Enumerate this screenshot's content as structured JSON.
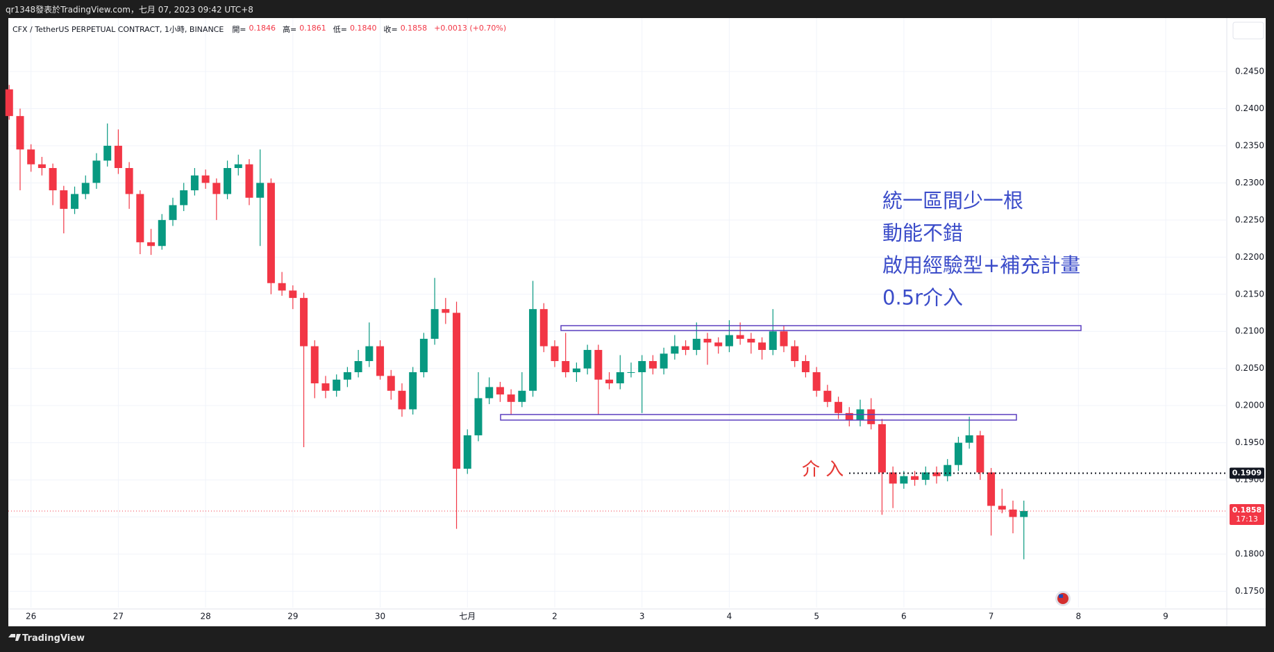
{
  "byline": "qr1348發表於TradingView.com，七月 07, 2023 09:42 UTC+8",
  "header": {
    "symbol": "CFX / TetherUS PERPETUAL CONTRACT, 1小時, BINANCE",
    "open_label": "開=",
    "open": "0.1846",
    "high_label": "高=",
    "high": "0.1861",
    "low_label": "低=",
    "low": "0.1840",
    "close_label": "收=",
    "close": "0.1858",
    "change": "+0.0013 (+0.70%)"
  },
  "footer": "TradingView",
  "chart_data": {
    "type": "candlestick",
    "up_color": "#089981",
    "down_color": "#f23645",
    "grid": true,
    "xlim": [
      25.74,
      39.7
    ],
    "xticks": [
      26,
      27,
      28,
      29,
      30,
      {
        "value": 31,
        "label": "七月"
      },
      {
        "value": 32,
        "label": "2"
      },
      {
        "value": 33,
        "label": "3"
      },
      {
        "value": 34,
        "label": "4"
      },
      {
        "value": 35,
        "label": "5"
      },
      {
        "value": 36,
        "label": "6"
      },
      {
        "value": 37,
        "label": "7"
      },
      {
        "value": 38,
        "label": "8"
      },
      {
        "value": 39,
        "label": "9"
      }
    ],
    "ylim": [
      0.1728,
      0.2522
    ],
    "yticks": [
      {
        "value": 0.175,
        "label": "0.1750"
      },
      {
        "value": 0.18,
        "label": "0.1800"
      },
      {
        "value": 0.185,
        "label": "0.1850"
      },
      {
        "value": 0.19,
        "label": "0.1900"
      },
      {
        "value": 0.195,
        "label": "0.1950"
      },
      {
        "value": 0.2,
        "label": "0.2000"
      },
      {
        "value": 0.205,
        "label": "0.2050"
      },
      {
        "value": 0.21,
        "label": "0.2100"
      },
      {
        "value": 0.215,
        "label": "0.2150"
      },
      {
        "value": 0.22,
        "label": "0.2200"
      },
      {
        "value": 0.225,
        "label": "0.2250"
      },
      {
        "value": 0.23,
        "label": "0.2300"
      },
      {
        "value": 0.235,
        "label": "0.2350"
      },
      {
        "value": 0.24,
        "label": "0.2400"
      },
      {
        "value": 0.245,
        "label": "0.2450"
      }
    ],
    "x": [
      25.75,
      25.875,
      26,
      26.125,
      26.25,
      26.375,
      26.5,
      26.625,
      26.75,
      26.875,
      27,
      27.125,
      27.25,
      27.375,
      27.5,
      27.625,
      27.75,
      27.875,
      28,
      28.125,
      28.25,
      28.375,
      28.5,
      28.625,
      28.75,
      28.875,
      29,
      29.125,
      29.25,
      29.375,
      29.5,
      29.625,
      29.75,
      29.875,
      30,
      30.125,
      30.25,
      30.375,
      30.5,
      30.625,
      30.75,
      30.875,
      31,
      31.125,
      31.25,
      31.375,
      31.5,
      31.625,
      31.75,
      31.875,
      32,
      32.125,
      32.25,
      32.375,
      32.5,
      32.625,
      32.75,
      32.875,
      33,
      33.125,
      33.25,
      33.375,
      33.5,
      33.625,
      33.75,
      33.875,
      34,
      34.125,
      34.25,
      34.375,
      34.5,
      34.625,
      34.75,
      34.875,
      35,
      35.125,
      35.25,
      35.375,
      35.5,
      35.625,
      35.75,
      35.875,
      36,
      36.125,
      36.25,
      36.375,
      36.5,
      36.625,
      36.75,
      36.875,
      37,
      37.125,
      37.25,
      37.375
    ],
    "ohlc": [
      [
        0.2426,
        0.2432,
        0.2385,
        0.239
      ],
      [
        0.239,
        0.24,
        0.229,
        0.2345
      ],
      [
        0.2345,
        0.2352,
        0.2315,
        0.2325
      ],
      [
        0.2325,
        0.2335,
        0.231,
        0.232
      ],
      [
        0.232,
        0.2326,
        0.227,
        0.229
      ],
      [
        0.229,
        0.2296,
        0.2232,
        0.2265
      ],
      [
        0.2265,
        0.2295,
        0.2258,
        0.2285
      ],
      [
        0.2285,
        0.231,
        0.2278,
        0.23
      ],
      [
        0.23,
        0.234,
        0.2292,
        0.233
      ],
      [
        0.233,
        0.238,
        0.2322,
        0.235
      ],
      [
        0.235,
        0.2372,
        0.2312,
        0.232
      ],
      [
        0.232,
        0.2328,
        0.2265,
        0.2285
      ],
      [
        0.2285,
        0.229,
        0.2204,
        0.222
      ],
      [
        0.222,
        0.2238,
        0.2203,
        0.2215
      ],
      [
        0.2215,
        0.2258,
        0.221,
        0.225
      ],
      [
        0.225,
        0.228,
        0.2242,
        0.227
      ],
      [
        0.227,
        0.23,
        0.2262,
        0.229
      ],
      [
        0.229,
        0.232,
        0.2283,
        0.231
      ],
      [
        0.231,
        0.2318,
        0.2292,
        0.23
      ],
      [
        0.23,
        0.2306,
        0.225,
        0.2285
      ],
      [
        0.2285,
        0.233,
        0.2278,
        0.232
      ],
      [
        0.232,
        0.2338,
        0.231,
        0.2325
      ],
      [
        0.2325,
        0.2332,
        0.227,
        0.228
      ],
      [
        0.228,
        0.2345,
        0.2215,
        0.23
      ],
      [
        0.23,
        0.2306,
        0.215,
        0.2165
      ],
      [
        0.2165,
        0.218,
        0.2148,
        0.2155
      ],
      [
        0.2155,
        0.2162,
        0.213,
        0.2145
      ],
      [
        0.2145,
        0.2152,
        0.1944,
        0.208
      ],
      [
        0.208,
        0.2088,
        0.201,
        0.203
      ],
      [
        0.203,
        0.204,
        0.201,
        0.202
      ],
      [
        0.202,
        0.2042,
        0.2012,
        0.2035
      ],
      [
        0.2035,
        0.2052,
        0.2025,
        0.2045
      ],
      [
        0.2045,
        0.2075,
        0.2038,
        0.206
      ],
      [
        0.206,
        0.2112,
        0.2052,
        0.208
      ],
      [
        0.208,
        0.2088,
        0.2035,
        0.204
      ],
      [
        0.204,
        0.2048,
        0.2008,
        0.202
      ],
      [
        0.202,
        0.203,
        0.1985,
        0.1995
      ],
      [
        0.1995,
        0.2052,
        0.1988,
        0.2045
      ],
      [
        0.2045,
        0.2098,
        0.2038,
        0.209
      ],
      [
        0.209,
        0.2172,
        0.2082,
        0.213
      ],
      [
        0.213,
        0.2145,
        0.211,
        0.2125
      ],
      [
        0.2125,
        0.214,
        0.1834,
        0.1915
      ],
      [
        0.1915,
        0.1968,
        0.1908,
        0.196
      ],
      [
        0.196,
        0.2045,
        0.1952,
        0.201
      ],
      [
        0.201,
        0.2038,
        0.2002,
        0.2025
      ],
      [
        0.2025,
        0.2032,
        0.2005,
        0.2015
      ],
      [
        0.2015,
        0.2022,
        0.1988,
        0.2005
      ],
      [
        0.2005,
        0.2045,
        0.1998,
        0.202
      ],
      [
        0.202,
        0.2168,
        0.2012,
        0.213
      ],
      [
        0.213,
        0.2138,
        0.2072,
        0.208
      ],
      [
        0.208,
        0.2088,
        0.2052,
        0.206
      ],
      [
        0.206,
        0.2098,
        0.2038,
        0.2045
      ],
      [
        0.2045,
        0.2058,
        0.2032,
        0.205
      ],
      [
        0.205,
        0.2082,
        0.2042,
        0.2075
      ],
      [
        0.2075,
        0.2082,
        0.1988,
        0.2035
      ],
      [
        0.2035,
        0.2045,
        0.2022,
        0.203
      ],
      [
        0.203,
        0.2068,
        0.2022,
        0.2045
      ],
      [
        0.2045,
        0.2058,
        0.2038,
        0.2045
      ],
      [
        0.2045,
        0.2068,
        0.199,
        0.206
      ],
      [
        0.206,
        0.2068,
        0.2042,
        0.205
      ],
      [
        0.205,
        0.2078,
        0.2042,
        0.207
      ],
      [
        0.207,
        0.2095,
        0.2062,
        0.208
      ],
      [
        0.208,
        0.2088,
        0.2068,
        0.2075
      ],
      [
        0.2075,
        0.2112,
        0.2068,
        0.209
      ],
      [
        0.209,
        0.2098,
        0.2055,
        0.2085
      ],
      [
        0.2085,
        0.2092,
        0.207,
        0.208
      ],
      [
        0.208,
        0.2115,
        0.2072,
        0.2095
      ],
      [
        0.2095,
        0.2112,
        0.2082,
        0.209
      ],
      [
        0.209,
        0.2098,
        0.207,
        0.2085
      ],
      [
        0.2085,
        0.2092,
        0.2062,
        0.2075
      ],
      [
        0.2075,
        0.213,
        0.2068,
        0.21
      ],
      [
        0.21,
        0.2108,
        0.2072,
        0.208
      ],
      [
        0.208,
        0.2088,
        0.2052,
        0.206
      ],
      [
        0.206,
        0.2068,
        0.2038,
        0.2045
      ],
      [
        0.2045,
        0.2052,
        0.2012,
        0.202
      ],
      [
        0.202,
        0.2028,
        0.1998,
        0.2005
      ],
      [
        0.2005,
        0.2012,
        0.1982,
        0.199
      ],
      [
        0.199,
        0.1998,
        0.1972,
        0.198
      ],
      [
        0.198,
        0.2008,
        0.1972,
        0.1995
      ],
      [
        0.1995,
        0.201,
        0.1968,
        0.1975
      ],
      [
        0.1975,
        0.1982,
        0.1853,
        0.191
      ],
      [
        0.191,
        0.1918,
        0.1862,
        0.1895
      ],
      [
        0.1895,
        0.1912,
        0.1888,
        0.1905
      ],
      [
        0.1905,
        0.1912,
        0.1892,
        0.19
      ],
      [
        0.19,
        0.1918,
        0.1893,
        0.191
      ],
      [
        0.191,
        0.1918,
        0.1895,
        0.1905
      ],
      [
        0.1905,
        0.1928,
        0.1898,
        0.192
      ],
      [
        0.192,
        0.1958,
        0.1912,
        0.195
      ],
      [
        0.195,
        0.1985,
        0.1942,
        0.196
      ],
      [
        0.196,
        0.1966,
        0.19,
        0.191
      ],
      [
        0.191,
        0.1916,
        0.1825,
        0.1865
      ],
      [
        0.1865,
        0.1888,
        0.1855,
        0.186
      ],
      [
        0.186,
        0.1872,
        0.1828,
        0.185
      ],
      [
        0.185,
        0.1872,
        0.1793,
        0.1858
      ]
    ],
    "last_price": 0.1858,
    "countdown": "17:13",
    "entry_price": 0.1909,
    "notes": [
      "統一區間少一根",
      "動能不錯",
      "啟用經驗型+補充計畫",
      "0.5r介入"
    ],
    "notes_color": "#3b4cc9",
    "entry_note": "介 入"
  }
}
